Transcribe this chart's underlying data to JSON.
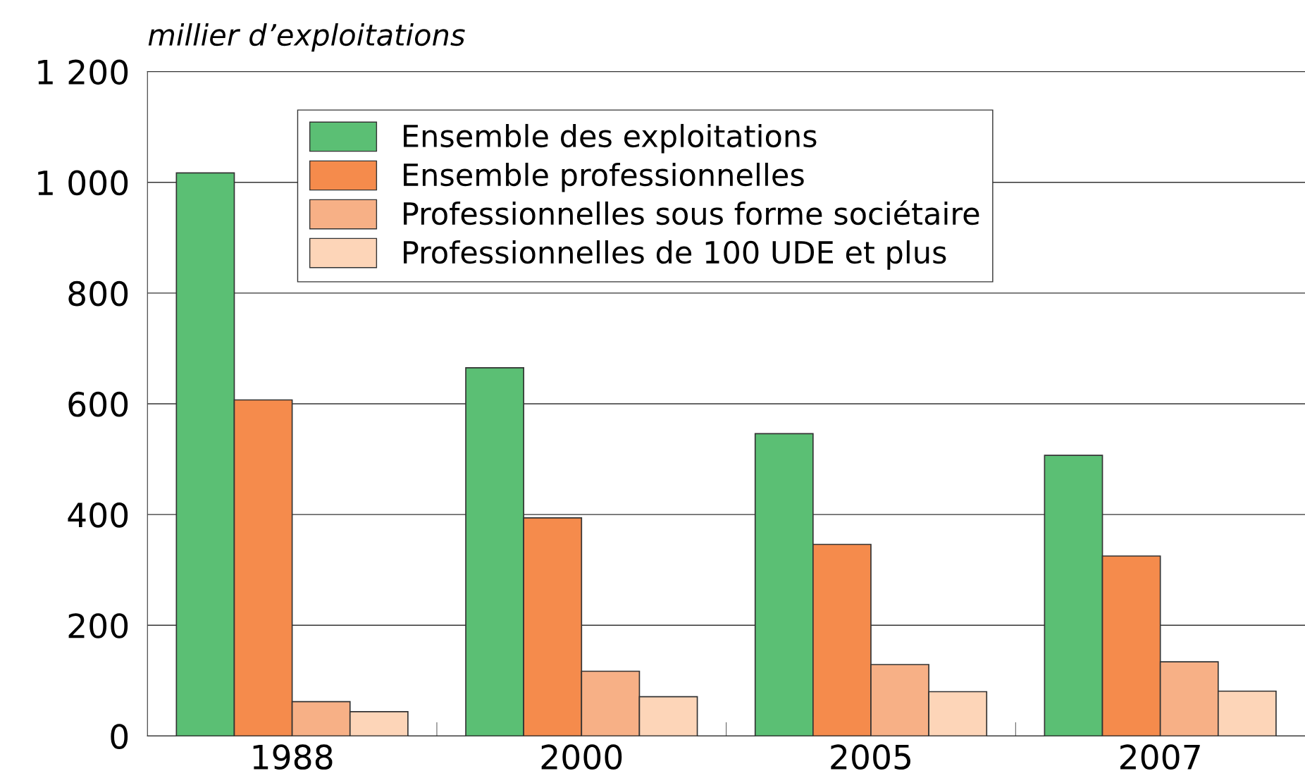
{
  "chart_data": {
    "type": "bar",
    "ylabel": "millier d’exploitations",
    "categories": [
      "1988",
      "2000",
      "2005",
      "2007"
    ],
    "series": [
      {
        "name": "Ensemble des exploitations",
        "color": "#5bbf74",
        "values": [
          1017,
          665,
          546,
          507
        ]
      },
      {
        "name": "Ensemble professionnelles",
        "color": "#f58b4c",
        "values": [
          607,
          394,
          346,
          325
        ]
      },
      {
        "name": "Professionnelles sous forme sociétaire",
        "color": "#f7b086",
        "values": [
          62,
          117,
          129,
          134
        ]
      },
      {
        "name": "Professionnelles de 100 UDE et plus",
        "color": "#fdd5b8",
        "values": [
          44,
          71,
          80,
          81
        ]
      }
    ],
    "ylim": [
      0,
      1200
    ],
    "yticks": [
      0,
      200,
      400,
      600,
      800,
      {
        "value": 1000,
        "label": "1 000"
      },
      {
        "value": 1200,
        "label": "1 200"
      }
    ],
    "grid": "y",
    "legend": "top"
  }
}
